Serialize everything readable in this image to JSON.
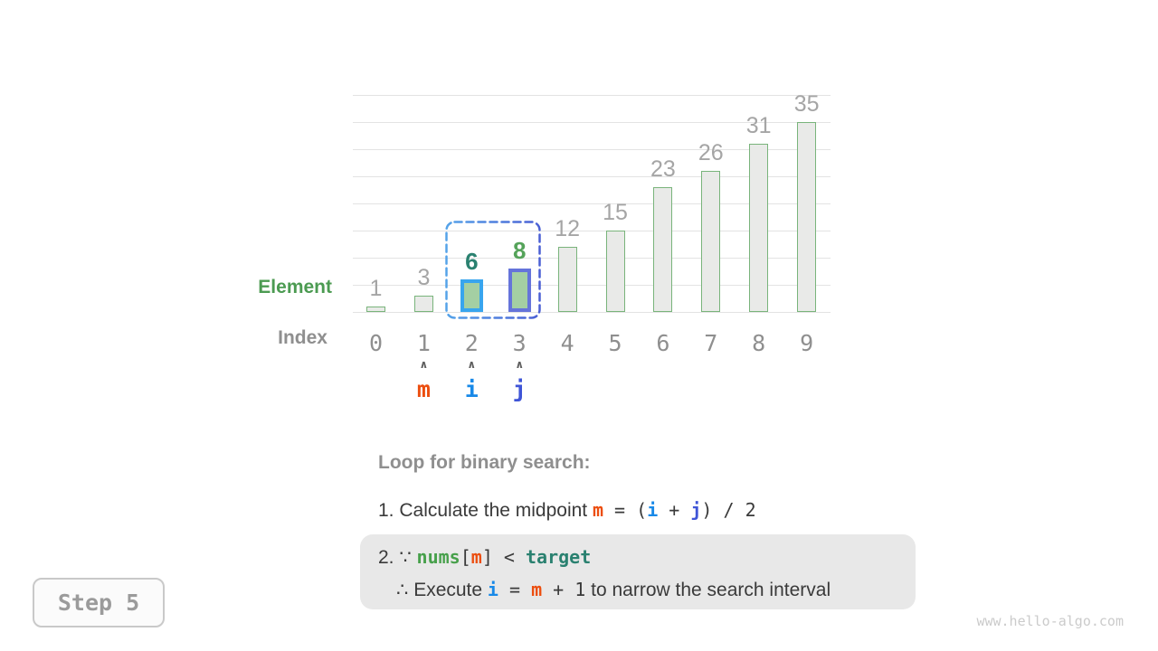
{
  "chart_data": {
    "type": "bar",
    "title": "",
    "categories": [
      "0",
      "1",
      "2",
      "3",
      "4",
      "5",
      "6",
      "7",
      "8",
      "9"
    ],
    "values": [
      1,
      3,
      6,
      8,
      12,
      15,
      23,
      26,
      31,
      35
    ],
    "xlabel": "Index",
    "ylabel": "Element",
    "ylim": [
      0,
      40
    ],
    "gridline_step": 5,
    "grid": true,
    "legend": "none",
    "bar_states": [
      "normal",
      "normal",
      "highlight-i",
      "highlight-j",
      "normal",
      "normal",
      "normal",
      "normal",
      "normal",
      "normal"
    ],
    "interval_box": {
      "from_index": 2,
      "to_index": 3
    },
    "value_label_colors": {
      "2": "#2a8170",
      "3": "#55a35a"
    },
    "pointers": [
      {
        "name": "m",
        "index": 1,
        "color": "#ec4e0f"
      },
      {
        "name": "i",
        "index": 2,
        "color": "#1889e8"
      },
      {
        "name": "j",
        "index": 3,
        "color": "#3f55d7"
      }
    ]
  },
  "axis": {
    "element_label": "Element",
    "index_label": "Index"
  },
  "colors": {
    "body": "#3a3a3a",
    "mono": "#3a3a3a",
    "m": "#ec4e0f",
    "i": "#1889e8",
    "j": "#3f55d7",
    "nums": "#47a04b",
    "target": "#2a8170",
    "bar_fill": "#e9eae8",
    "bar_border": "#79b47b",
    "highlight_fill": "#a4cfa3",
    "highlight_border_i": "#38a5ee",
    "highlight_border_j": "#6574da",
    "interval_dash_start": "#55a3e9",
    "interval_dash_end": "#4a5fd4",
    "value_label_gray": "#a5a5a5"
  },
  "explanation": {
    "heading": "Loop for binary search:",
    "midpoint_line": [
      {
        "t": "1. Calculate the midpoint ",
        "s": "sans"
      },
      {
        "t": "m",
        "s": "m"
      },
      {
        "t": " = (",
        "s": "mono"
      },
      {
        "t": "i",
        "s": "i"
      },
      {
        "t": " + ",
        "s": "mono"
      },
      {
        "t": "j",
        "s": "j"
      },
      {
        "t": ") / 2",
        "s": "mono"
      }
    ],
    "condition_line": [
      {
        "t": "2. ∵ ",
        "s": "sans"
      },
      {
        "t": "nums",
        "s": "nums"
      },
      {
        "t": "[",
        "s": "mono"
      },
      {
        "t": "m",
        "s": "m"
      },
      {
        "t": "] < ",
        "s": "mono"
      },
      {
        "t": "target",
        "s": "target"
      }
    ],
    "action_line": [
      {
        "t": "∴ Execute ",
        "s": "sans"
      },
      {
        "t": "i",
        "s": "i"
      },
      {
        "t": " = ",
        "s": "mono"
      },
      {
        "t": "m",
        "s": "m"
      },
      {
        "t": " + 1",
        "s": "mono"
      },
      {
        "t": " to narrow the search interval",
        "s": "sans"
      }
    ]
  },
  "step_badge": {
    "label": "Step 5"
  },
  "watermark": "www.hello-algo.com"
}
